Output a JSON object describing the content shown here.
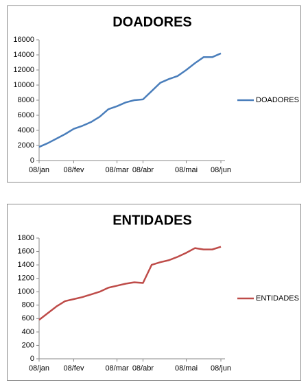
{
  "chart_data": [
    {
      "type": "line",
      "title": "DOADORES",
      "categories": [
        "08/jan",
        null,
        null,
        null,
        "08/fev",
        null,
        null,
        null,
        null,
        "08/mar",
        null,
        null,
        "08/abr",
        null,
        null,
        null,
        null,
        "08/mai",
        null,
        null,
        null,
        "08/jun"
      ],
      "series": [
        {
          "name": "DOADORES",
          "color": "#4a7ebb",
          "values": [
            1800,
            2300,
            2900,
            3500,
            4200,
            4600,
            5100,
            5800,
            6800,
            7200,
            7700,
            8000,
            8100,
            9200,
            10300,
            10800,
            11200,
            12000,
            12900,
            13700,
            13700,
            14200
          ]
        }
      ],
      "ylim": [
        0,
        16000
      ],
      "yticks": [
        0,
        2000,
        4000,
        6000,
        8000,
        10000,
        12000,
        14000,
        16000
      ],
      "legend": "right"
    },
    {
      "type": "line",
      "title": "ENTIDADES",
      "categories": [
        "08/jan",
        null,
        null,
        null,
        "08/fev",
        null,
        null,
        null,
        null,
        "08/mar",
        null,
        null,
        "08/abr",
        null,
        null,
        null,
        null,
        "08/mai",
        null,
        null,
        null,
        "08/jun"
      ],
      "series": [
        {
          "name": "ENTIDADES",
          "color": "#be4b48",
          "values": [
            580,
            680,
            780,
            860,
            890,
            920,
            960,
            1000,
            1060,
            1090,
            1120,
            1140,
            1130,
            1400,
            1440,
            1470,
            1520,
            1580,
            1650,
            1630,
            1630,
            1670
          ]
        }
      ],
      "ylim": [
        0,
        1800
      ],
      "yticks": [
        0,
        200,
        400,
        600,
        800,
        1000,
        1200,
        1400,
        1600,
        1800
      ],
      "legend": "right"
    }
  ]
}
